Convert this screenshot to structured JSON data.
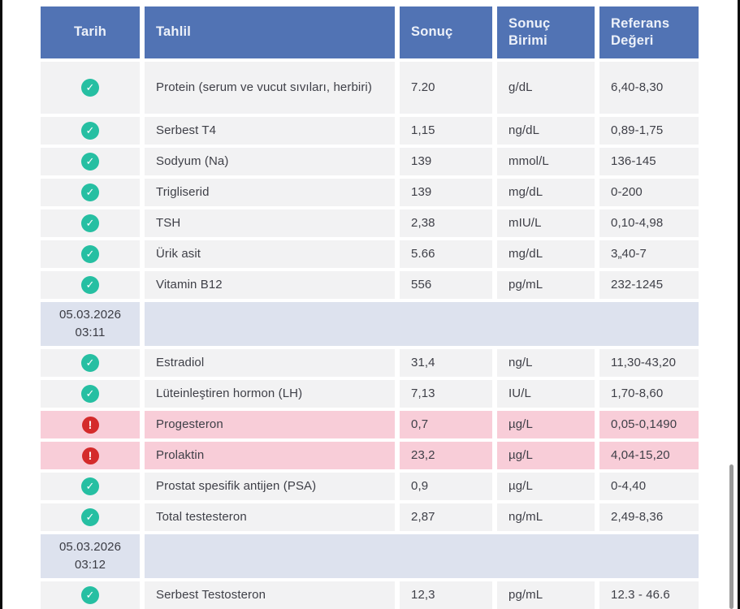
{
  "table": {
    "columns": [
      "Tarih",
      "Tahlil",
      "Sonuç",
      "Sonuç Birimi",
      "Referans Değeri"
    ],
    "rows": [
      {
        "type": "result",
        "status": "ok",
        "test": "Protein (serum ve vucut sıvıları, herbiri)",
        "result": "7.20",
        "unit": "g/dL",
        "reference": "6,40-8,30",
        "tall": true
      },
      {
        "type": "result",
        "status": "ok",
        "test": "Serbest T4",
        "result": "1,15",
        "unit": "ng/dL",
        "reference": "0,89-1,75"
      },
      {
        "type": "result",
        "status": "ok",
        "test": "Sodyum (Na)",
        "result": "139",
        "unit": "mmol/L",
        "reference": "136-145"
      },
      {
        "type": "result",
        "status": "ok",
        "test": "Trigliserid",
        "result": "139",
        "unit": "mg/dL",
        "reference": "0-200"
      },
      {
        "type": "result",
        "status": "ok",
        "test": "TSH",
        "result": "2,38",
        "unit": "mIU/L",
        "reference": "0,10-4,98"
      },
      {
        "type": "result",
        "status": "ok",
        "test": "Ürik asit",
        "result": "5.66",
        "unit": "mg/dL",
        "reference": "3„40-7"
      },
      {
        "type": "result",
        "status": "ok",
        "test": "Vitamin B12",
        "result": "556",
        "unit": "pg/mL",
        "reference": "232-1245"
      },
      {
        "type": "date",
        "date_line1": "05.03.2026",
        "date_line2": "03:11"
      },
      {
        "type": "result",
        "status": "ok",
        "test": "Estradiol",
        "result": "31,4",
        "unit": "ng/L",
        "reference": "11,30-43,20"
      },
      {
        "type": "result",
        "status": "ok",
        "test": "Lüteinleştiren hormon (LH)",
        "result": "7,13",
        "unit": "IU/L",
        "reference": "1,70-8,60"
      },
      {
        "type": "result",
        "status": "alert",
        "test": "Progesteron",
        "result": "0,7",
        "unit": "µg/L",
        "reference": "0,05-0,1490"
      },
      {
        "type": "result",
        "status": "alert",
        "test": "Prolaktin",
        "result": "23,2",
        "unit": "µg/L",
        "reference": "4,04-15,20"
      },
      {
        "type": "result",
        "status": "ok",
        "test": "Prostat spesifik antijen (PSA)",
        "result": "0,9",
        "unit": "µg/L",
        "reference": "0-4,40"
      },
      {
        "type": "result",
        "status": "ok",
        "test": "Total testesteron",
        "result": "2,87",
        "unit": "ng/mL",
        "reference": "2,49-8,36"
      },
      {
        "type": "date",
        "date_line1": "05.03.2026",
        "date_line2": "03:12"
      },
      {
        "type": "result",
        "status": "ok",
        "test": "Serbest Testosteron",
        "result": "12,3",
        "unit": "pg/mL",
        "reference": "12.3 - 46.6"
      }
    ],
    "icons": {
      "ok_glyph": "✓",
      "alert_glyph": "!"
    },
    "colors": {
      "header_bg": "#5173b4",
      "header_text": "#edf1f9",
      "row_bg": "#f2f2f3",
      "alert_row_bg": "#f8cdd8",
      "date_row_bg": "#dde2ee",
      "ok_icon": "#26bfa2",
      "alert_icon": "#d42b2b",
      "body_text": "#3e3f47"
    }
  }
}
